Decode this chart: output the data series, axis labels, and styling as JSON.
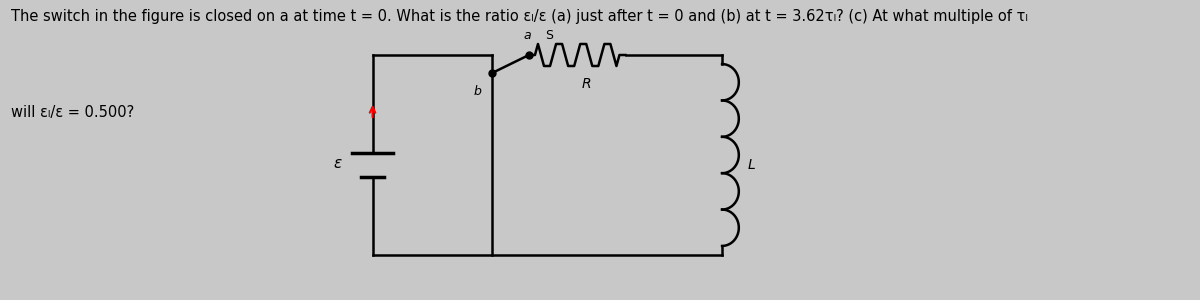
{
  "bg_color": "#c8c8c8",
  "text_line1": "The switch in the figure is closed on a at time t = 0. What is the ratio εₗ/ε (a) just after t = 0 and (b) at t = 3.62τₗ? (c) At what multiple of τₗ",
  "text_line2": "will εₗ/ε = 0.500?",
  "text_fontsize": 10.5,
  "circuit_color": "#000000",
  "battery_label": "ε",
  "switch_a_label": "a",
  "switch_b_label": "b",
  "resistor_label": "R",
  "inductor_label": "L",
  "lw": 1.8
}
